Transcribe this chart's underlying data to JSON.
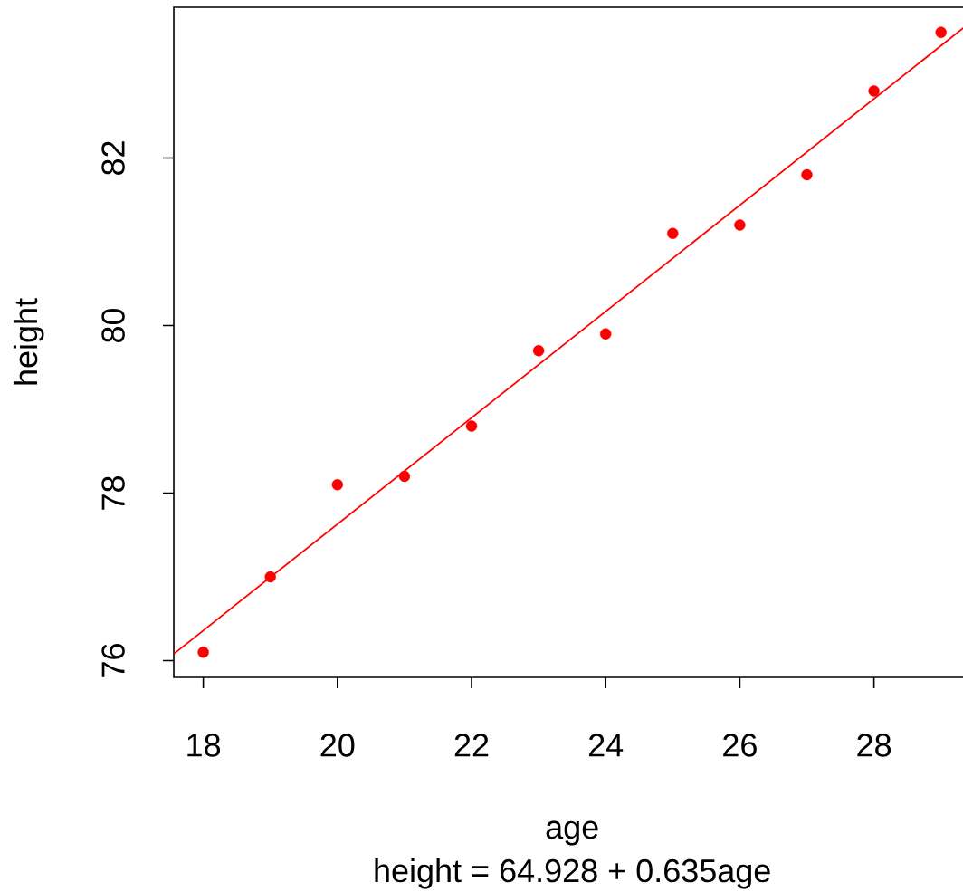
{
  "chart_data": {
    "type": "scatter",
    "xlabel": "age",
    "ylabel": "height",
    "annotations": [
      "height = 64.928 + 0.635age"
    ],
    "xlim": [
      17.56,
      29.44
    ],
    "ylim": [
      75.8,
      83.8
    ],
    "xticks": [
      18,
      20,
      22,
      24,
      26,
      28
    ],
    "yticks": [
      76,
      78,
      80,
      82
    ],
    "marker": "circle",
    "series": [
      {
        "color": "#ff0000",
        "x": [
          18,
          19,
          20,
          21,
          22,
          23,
          24,
          25,
          26,
          27,
          28,
          29
        ],
        "values": [
          76.1,
          77.0,
          78.1,
          78.2,
          78.8,
          79.7,
          79.9,
          81.1,
          81.2,
          81.8,
          82.8,
          83.5
        ]
      },
      {
        "type": "line",
        "color": "#ff0000",
        "marker": "none",
        "x": [
          17.56,
          29.44
        ],
        "values": [
          76.08,
          83.62
        ]
      }
    ]
  }
}
